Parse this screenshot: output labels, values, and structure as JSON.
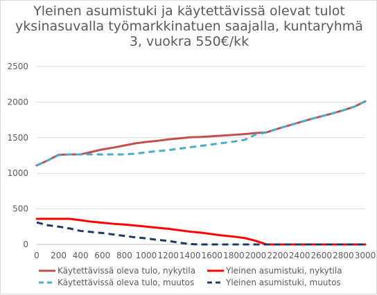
{
  "chart_data": {
    "type": "line",
    "title_lines": [
      "Yleinen asumistuki ja käytettävissä olevat tulot",
      "yksinasuvalla työmarkkinatuen saajalla, kuntaryhmä",
      "3, vuokra 550€/kk"
    ],
    "xlabel": "",
    "ylabel": "",
    "x": [
      0,
      100,
      200,
      300,
      400,
      500,
      600,
      700,
      800,
      900,
      1000,
      1100,
      1200,
      1300,
      1400,
      1500,
      1600,
      1700,
      1800,
      1900,
      2000,
      2100,
      2200,
      2300,
      2400,
      2500,
      2600,
      2700,
      2800,
      2900,
      3000
    ],
    "x_tick_labels": [
      "0",
      "200",
      "400",
      "600",
      "800",
      "1000",
      "1200",
      "1400",
      "1600",
      "1800",
      "2000",
      "2200",
      "2400",
      "2600",
      "2800",
      "3000"
    ],
    "x_tick_values": [
      0,
      200,
      400,
      600,
      800,
      1000,
      1200,
      1400,
      1600,
      1800,
      2000,
      2200,
      2400,
      2600,
      2800,
      3000
    ],
    "xlim": [
      0,
      3000
    ],
    "y_ticks": [
      0,
      500,
      1000,
      1500,
      2000,
      2500
    ],
    "ylim": [
      0,
      2500
    ],
    "grid": true,
    "legend_position": "bottom",
    "series": [
      {
        "name": "Käytettävissä oleva tulo, nykytila",
        "color": "#c0504d",
        "dash": "solid",
        "values": [
          1110,
          1180,
          1260,
          1265,
          1265,
          1300,
          1335,
          1360,
          1390,
          1420,
          1440,
          1455,
          1475,
          1490,
          1505,
          1510,
          1520,
          1530,
          1540,
          1550,
          1565,
          1575,
          1625,
          1670,
          1715,
          1760,
          1800,
          1840,
          1885,
          1935,
          2010
        ]
      },
      {
        "name": "Yleinen asumistuki, nykytila",
        "color": "#ff0000",
        "dash": "solid",
        "values": [
          360,
          360,
          360,
          360,
          340,
          320,
          305,
          290,
          280,
          265,
          250,
          235,
          220,
          200,
          180,
          165,
          145,
          125,
          110,
          90,
          50,
          0,
          0,
          0,
          0,
          0,
          0,
          0,
          0,
          0,
          0
        ]
      },
      {
        "name": "Käytettävissä oleva tulo, muutos",
        "color": "#4bacc6",
        "dash": "dashed",
        "values": [
          1110,
          1180,
          1255,
          1265,
          1265,
          1265,
          1265,
          1265,
          1265,
          1275,
          1295,
          1310,
          1325,
          1345,
          1365,
          1385,
          1405,
          1425,
          1445,
          1470,
          1545,
          1575,
          1625,
          1670,
          1715,
          1760,
          1800,
          1840,
          1885,
          1935,
          2010
        ]
      },
      {
        "name": "Yleinen asumistuki, muutos",
        "color": "#1f3864",
        "dash": "dashed",
        "values": [
          310,
          270,
          250,
          225,
          190,
          175,
          160,
          140,
          120,
          100,
          85,
          65,
          50,
          25,
          5,
          0,
          0,
          0,
          0,
          0,
          0,
          0,
          0,
          0,
          0,
          0,
          0,
          0,
          0,
          0,
          0
        ]
      }
    ]
  }
}
